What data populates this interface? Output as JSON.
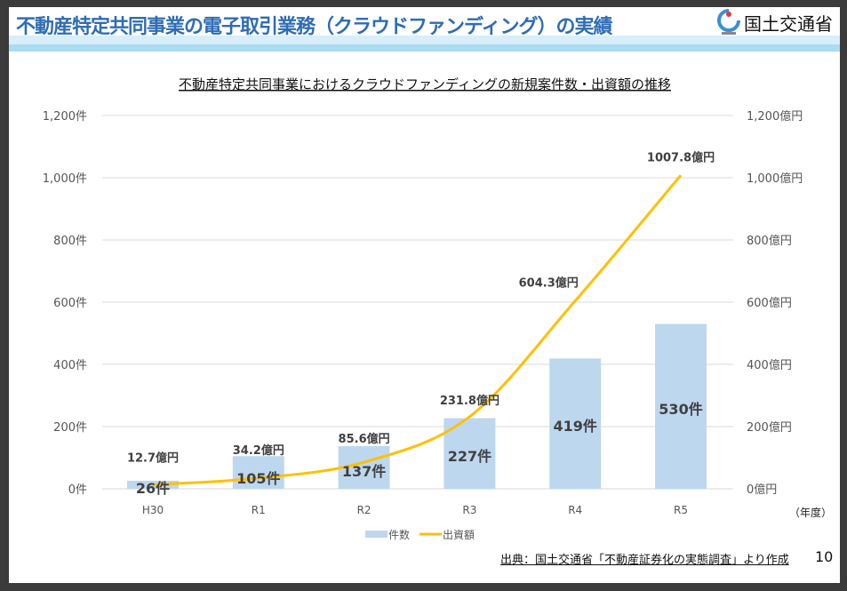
{
  "header": {
    "title": "不動産特定共同事業の電子取引業務（クラウドファンディング）の実績",
    "logo_text": "国土交通省"
  },
  "footer": {
    "source": "出典：国土交通省「不動産証券化の実態調査」より作成",
    "page": "10"
  },
  "chart_data": {
    "type": "bar+line",
    "title": "不動産特定共同事業におけるクラウドファンディングの新規案件数・出資額の推移",
    "categories": [
      "H30",
      "R1",
      "R2",
      "R3",
      "R4",
      "R5"
    ],
    "x_unit_label": "（年度）",
    "left_axis": {
      "ylim": [
        0,
        1200
      ],
      "ticks": [
        0,
        200,
        400,
        600,
        800,
        1000,
        1200
      ],
      "tick_labels": [
        "0件",
        "200件",
        "400件",
        "600件",
        "800件",
        "1,000件",
        "1,200件"
      ]
    },
    "right_axis": {
      "ylim": [
        0,
        1200
      ],
      "ticks": [
        0,
        200,
        400,
        600,
        800,
        1000,
        1200
      ],
      "tick_labels": [
        "0億円",
        "200億円",
        "400億円",
        "600億円",
        "800億円",
        "1,000億円",
        "1,200億円"
      ]
    },
    "grid": true,
    "legend_position": "bottom",
    "series": [
      {
        "name": "件数",
        "type": "bar",
        "axis": "left",
        "color": "#bdd7ee",
        "values": [
          26,
          105,
          137,
          227,
          419,
          530
        ],
        "labels": [
          "26件",
          "105件",
          "137件",
          "227件",
          "419件",
          "530件"
        ]
      },
      {
        "name": "出資額",
        "type": "line",
        "axis": "right",
        "color": "#ffc000",
        "values": [
          12.7,
          34.2,
          85.6,
          231.8,
          604.3,
          1007.8
        ],
        "labels": [
          "12.7億円",
          "34.2億円",
          "85.6億円",
          "231.8億円",
          "604.3億円",
          "1007.8億円"
        ]
      }
    ]
  }
}
